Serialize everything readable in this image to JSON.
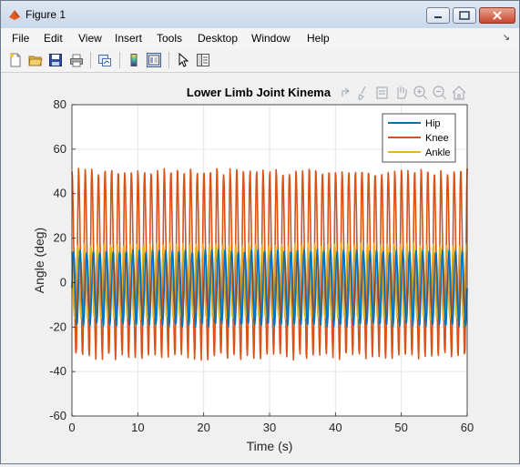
{
  "window": {
    "title": "Figure 1"
  },
  "menu": [
    "File",
    "Edit",
    "View",
    "Insert",
    "Tools",
    "Desktop",
    "Window",
    "Help"
  ],
  "toolbar_icons": [
    "new-figure-icon",
    "open-file-icon",
    "save-icon",
    "print-icon",
    "link-plot-icon",
    "colorbar-icon",
    "legend-icon",
    "pointer-icon",
    "property-editor-icon"
  ],
  "axes_toolbar_icons": [
    "export-icon",
    "brush-icon",
    "datatip-icon",
    "pan-icon",
    "zoom-in-icon",
    "zoom-out-icon",
    "home-icon"
  ],
  "chart_data": {
    "type": "line",
    "title": "Lower Limb Joint Kinematics",
    "title_visible": "Lower Limb Joint Kinema",
    "xlabel": "Time (s)",
    "ylabel": "Angle (deg)",
    "xlim": [
      0,
      60
    ],
    "ylim": [
      -60,
      80
    ],
    "xticks": [
      0,
      10,
      20,
      30,
      40,
      50,
      60
    ],
    "yticks": [
      -60,
      -40,
      -20,
      0,
      20,
      40,
      60,
      80
    ],
    "grid": true,
    "legend_position": "top-right",
    "cycles": 60,
    "series": [
      {
        "name": "Hip",
        "color": "#0072bd",
        "max": 15,
        "min": -20
      },
      {
        "name": "Knee",
        "color": "#d95319",
        "max": 57,
        "min": -40
      },
      {
        "name": "Ankle",
        "color": "#edb120",
        "max": 18,
        "min": -17
      }
    ]
  }
}
